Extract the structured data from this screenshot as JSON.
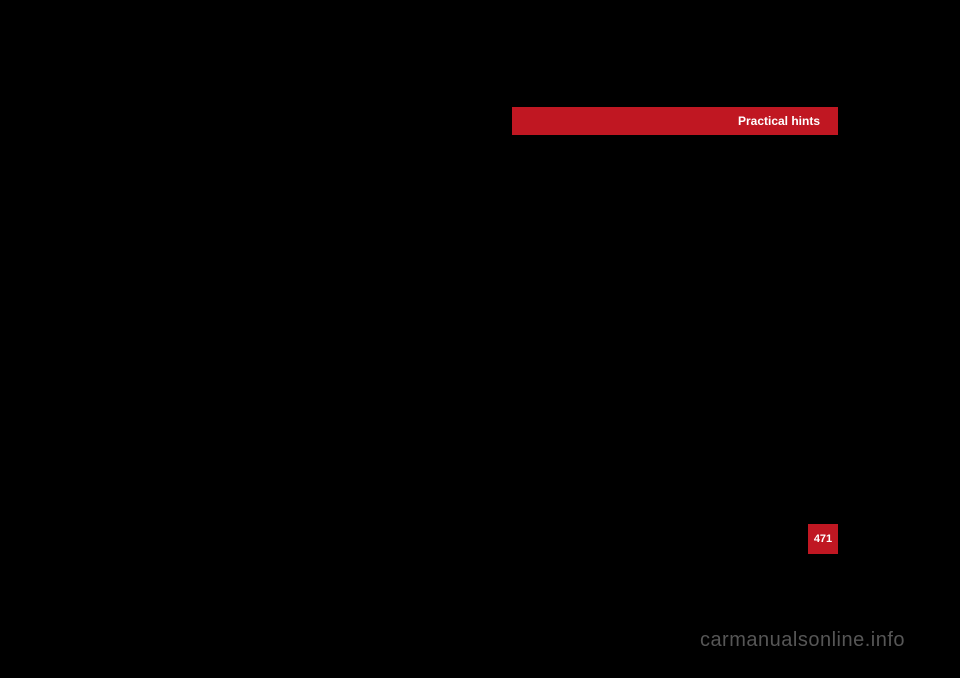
{
  "header": {
    "title": "Practical hints"
  },
  "page": {
    "number": "471"
  },
  "watermark": {
    "text": "carmanualsonline.info"
  }
}
